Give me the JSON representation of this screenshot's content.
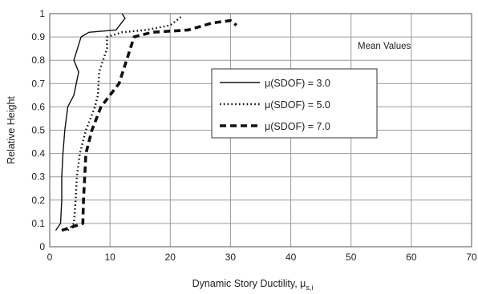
{
  "chart_data": {
    "type": "line",
    "xlabel": "Dynamic Story Ductility, μ",
    "xlabel_subscript": "s,i",
    "ylabel": "Relative Height",
    "xlim": [
      0,
      70
    ],
    "ylim": [
      0,
      1
    ],
    "xticks": [
      "0",
      "10",
      "20",
      "30",
      "40",
      "50",
      "60",
      "70"
    ],
    "yticks": [
      "0",
      "0.1",
      "0.2",
      "0.3",
      "0.4",
      "0.5",
      "0.6",
      "0.7",
      "0.8",
      "0.9",
      "1"
    ],
    "grid": true,
    "annotation": "Mean Values",
    "legend_placement": "center",
    "series": [
      {
        "name": "μ(SDOF) = 3.0",
        "style": "solid",
        "points": [
          [
            1,
            0.07
          ],
          [
            1.8,
            0.1
          ],
          [
            2,
            0.2
          ],
          [
            2,
            0.3
          ],
          [
            2.2,
            0.4
          ],
          [
            2.5,
            0.5
          ],
          [
            3,
            0.6
          ],
          [
            4,
            0.65
          ],
          [
            4.8,
            0.75
          ],
          [
            4,
            0.8
          ],
          [
            5.2,
            0.9
          ],
          [
            6.5,
            0.92
          ],
          [
            11,
            0.93
          ],
          [
            12.5,
            0.98
          ],
          [
            12,
            1
          ]
        ]
      },
      {
        "name": "μ(SDOF) = 5.0",
        "style": "dotted",
        "points": [
          [
            3,
            0.07
          ],
          [
            4,
            0.1
          ],
          [
            4.3,
            0.2
          ],
          [
            4.5,
            0.3
          ],
          [
            5,
            0.4
          ],
          [
            6,
            0.5
          ],
          [
            7.5,
            0.6
          ],
          [
            8,
            0.65
          ],
          [
            8.2,
            0.75
          ],
          [
            9.5,
            0.85
          ],
          [
            9.5,
            0.9
          ],
          [
            12,
            0.92
          ],
          [
            16,
            0.93
          ],
          [
            20,
            0.95
          ],
          [
            21,
            0.97
          ],
          [
            22,
            0.99
          ]
        ]
      },
      {
        "name": "μ(SDOF) = 7.0",
        "style": "dashed",
        "points": [
          [
            2,
            0.07
          ],
          [
            5.5,
            0.1
          ],
          [
            5.6,
            0.2
          ],
          [
            5.8,
            0.3
          ],
          [
            6,
            0.4
          ],
          [
            7,
            0.5
          ],
          [
            8.5,
            0.6
          ],
          [
            11.5,
            0.7
          ],
          [
            13,
            0.82
          ],
          [
            14,
            0.9
          ],
          [
            17,
            0.92
          ],
          [
            23,
            0.93
          ],
          [
            27,
            0.96
          ],
          [
            30,
            0.97
          ],
          [
            31,
            0.95
          ]
        ]
      }
    ]
  }
}
